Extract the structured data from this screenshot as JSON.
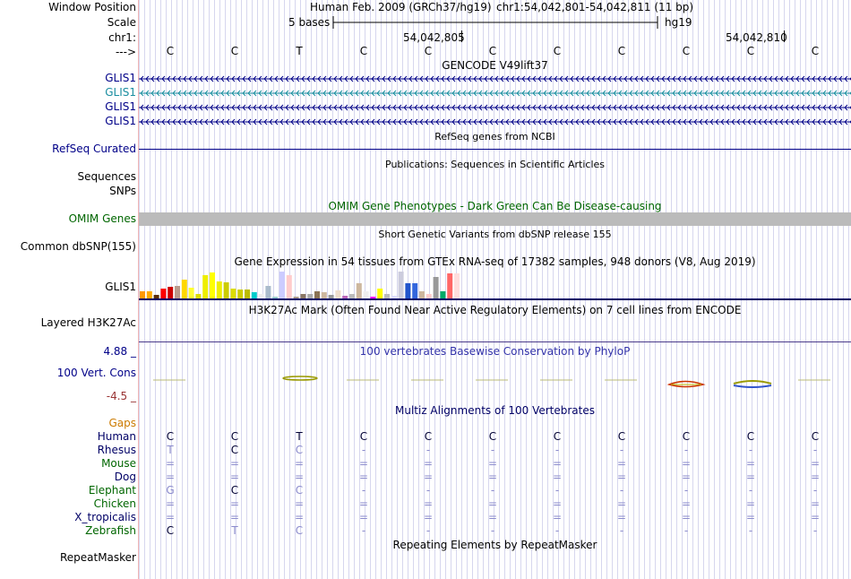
{
  "labels": {
    "window_position": "Window Position",
    "scale": "Scale",
    "chr": "chr1:",
    "strand": "--->",
    "glis1_a": "GLIS1",
    "glis1_b": "GLIS1",
    "glis1_c": "GLIS1",
    "glis1_d": "GLIS1",
    "refseq": "RefSeq Curated",
    "sequences": "Sequences",
    "snps": "SNPs",
    "omim_genes": "OMIM Genes",
    "common_dbsnp": "Common dbSNP(155)",
    "glis1_gtex": "GLIS1",
    "layered": "Layered H3K27Ac",
    "cons_max": "4.88 _",
    "cons_name": "100 Vert. Cons",
    "cons_min": "-4.5 _",
    "gaps": "Gaps",
    "repeatmasker": "RepeatMasker"
  },
  "header": {
    "assembly": "Human Feb. 2009 (GRCh37/hg19)",
    "position": "chr1:54,042,801-54,042,811 (11 bp)",
    "scale_text": "5 bases",
    "scale_db": "hg19",
    "coord1": "54,042,805",
    "coord2": "54,042,810"
  },
  "reference_bases": [
    "C",
    "C",
    "T",
    "C",
    "C",
    "C",
    "C",
    "C",
    "C",
    "C",
    "C"
  ],
  "tracks": {
    "gencode_title": "GENCODE V49lift37",
    "refseq_title": "RefSeq genes from NCBI",
    "publications_title": "Publications: Sequences in Scientific Articles",
    "omim_title": "OMIM Gene Phenotypes - Dark Green Can Be Disease-causing",
    "dbsnp_title": "Short Genetic Variants from dbSNP release 155",
    "gtex_title": "Gene Expression in 54 tissues from GTEx RNA-seq of 17382 samples, 948 donors (V8, Aug 2019)",
    "h3k27ac_title": "H3K27Ac Mark (Often Found Near Active Regulatory Elements) on 7 cell lines from ENCODE",
    "phylop_title": "100 vertebrates Basewise Conservation by PhyloP",
    "multiz_title": "Multiz Alignments of 100 Vertebrates",
    "repeat_title": "Repeating Elements by RepeatMasker"
  },
  "gtex_bars": [
    0.25,
    0.25,
    0.12,
    0.35,
    0.42,
    0.48,
    0.7,
    0.4,
    0.18,
    0.85,
    0.95,
    0.62,
    0.6,
    0.38,
    0.33,
    0.32,
    0.22,
    0.18,
    0.45,
    0.08,
    1.0,
    0.88,
    0.06,
    0.15,
    0.18,
    0.26,
    0.22,
    0.12,
    0.3,
    0.1,
    0.18,
    0.58,
    0.28,
    0.08,
    0.36,
    0.18,
    0.1,
    1.0,
    0.55,
    0.58,
    0.28,
    0.18,
    0.8,
    0.25,
    0.92,
    0.93
  ],
  "gtex_colors": [
    "#ff9900",
    "#ffaa00",
    "#5c2e00",
    "#ff0000",
    "#cc0000",
    "#b99a8c",
    "#ffd700",
    "#ffff33",
    "#dddd00",
    "#eeee00",
    "#ffff00",
    "#eeee00",
    "#cccc00",
    "#dddd00",
    "#cccc00",
    "#bbbb00",
    "#00cccc",
    "#eeeeee",
    "#aabbcc",
    "#99cccc",
    "#ccccff",
    "#ffcccc",
    "#aa9988",
    "#8b7765",
    "#aaaaaa",
    "#8b7355",
    "#cdb79e",
    "#999999",
    "#eeddcc",
    "#bb66bb",
    "#bbbbbb",
    "#cdb79e",
    "#eeeeee",
    "#ff00ff",
    "#ffff00",
    "#bbbbbb",
    "#ddddff",
    "#ccccdd",
    "#2255cc",
    "#3366dd",
    "#cdb79e",
    "#ffcccc",
    "#999999",
    "#00aa66",
    "#ff6666",
    "#ffdddd"
  ],
  "multiz": {
    "species": [
      "Human",
      "Rhesus",
      "Mouse",
      "Dog",
      "Elephant",
      "Chicken",
      "X_tropicalis",
      "Zebrafish"
    ],
    "species_colors": [
      "#000066",
      "#000066",
      "#006600",
      "#000066",
      "#006600",
      "#006600",
      "#000066",
      "#006600"
    ],
    "rows": [
      [
        "C",
        "C",
        "T",
        "C",
        "C",
        "C",
        "C",
        "C",
        "C",
        "C",
        "C"
      ],
      [
        "T",
        "C",
        "C",
        "-",
        "-",
        "-",
        "-",
        "-",
        "-",
        "-",
        "-"
      ],
      [
        "=",
        "=",
        "=",
        "=",
        "=",
        "=",
        "=",
        "=",
        "=",
        "=",
        "="
      ],
      [
        "=",
        "=",
        "=",
        "=",
        "=",
        "=",
        "=",
        "=",
        "=",
        "=",
        "="
      ],
      [
        "G",
        "C",
        "C",
        "-",
        "-",
        "-",
        "-",
        "-",
        "-",
        "-",
        "-"
      ],
      [
        "=",
        "=",
        "=",
        "=",
        "=",
        "=",
        "=",
        "=",
        "=",
        "=",
        "="
      ],
      [
        "=",
        "=",
        "=",
        "=",
        "=",
        "=",
        "=",
        "=",
        "=",
        "=",
        "="
      ],
      [
        "C",
        "T",
        "C",
        "-",
        "-",
        "-",
        "-",
        "-",
        "-",
        "-",
        "-"
      ]
    ]
  },
  "colors": {
    "label_blue": "#000088",
    "label_green": "#006600",
    "gencode_teal": "#1a8da0",
    "omim_gray": "#bbbbbb",
    "gaps_orange": "#cc7a00",
    "phylop_blue": "#3333aa",
    "cons_neg": "#993333"
  }
}
